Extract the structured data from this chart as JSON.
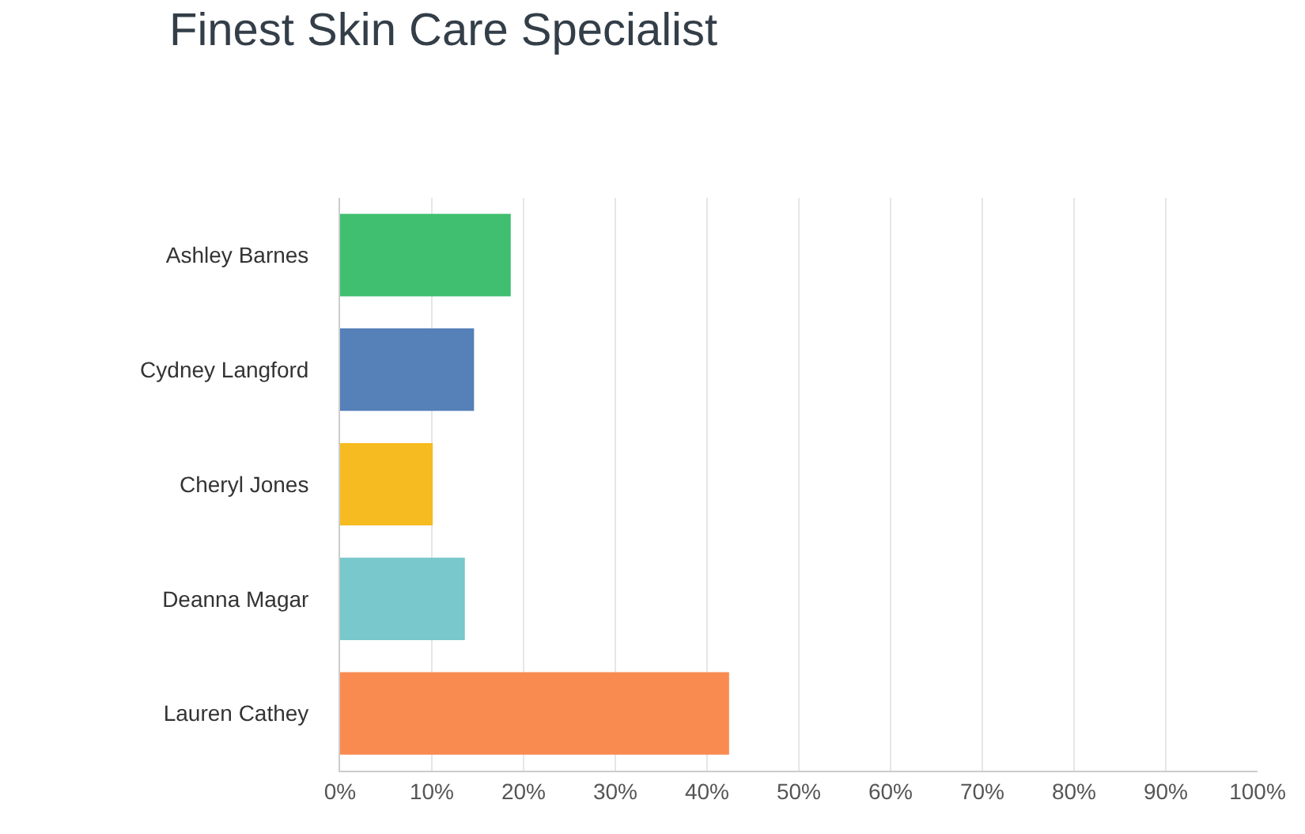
{
  "chart_data": {
    "type": "bar",
    "orientation": "horizontal",
    "title": "Finest Skin Care Specialist",
    "categories": [
      "Ashley Barnes",
      "Cydney Langford",
      "Cheryl Jones",
      "Deanna Magar",
      "Lauren Cathey"
    ],
    "values": [
      18.6,
      14.6,
      10.1,
      13.6,
      42.4
    ],
    "colors": [
      "#3fbf6f",
      "#5580b8",
      "#f6bb20",
      "#79c8cb",
      "#f98b50"
    ],
    "xlim": [
      0,
      100
    ],
    "xticks": [
      {
        "value": 0,
        "label": "0%"
      },
      {
        "value": 10,
        "label": "10%"
      },
      {
        "value": 20,
        "label": "20%"
      },
      {
        "value": 30,
        "label": "30%"
      },
      {
        "value": 40,
        "label": "40%"
      },
      {
        "value": 50,
        "label": "50%"
      },
      {
        "value": 60,
        "label": "60%"
      },
      {
        "value": 70,
        "label": "70%"
      },
      {
        "value": 80,
        "label": "80%"
      },
      {
        "value": 90,
        "label": "90%"
      },
      {
        "value": 100,
        "label": "100%"
      }
    ],
    "grid": "x"
  }
}
